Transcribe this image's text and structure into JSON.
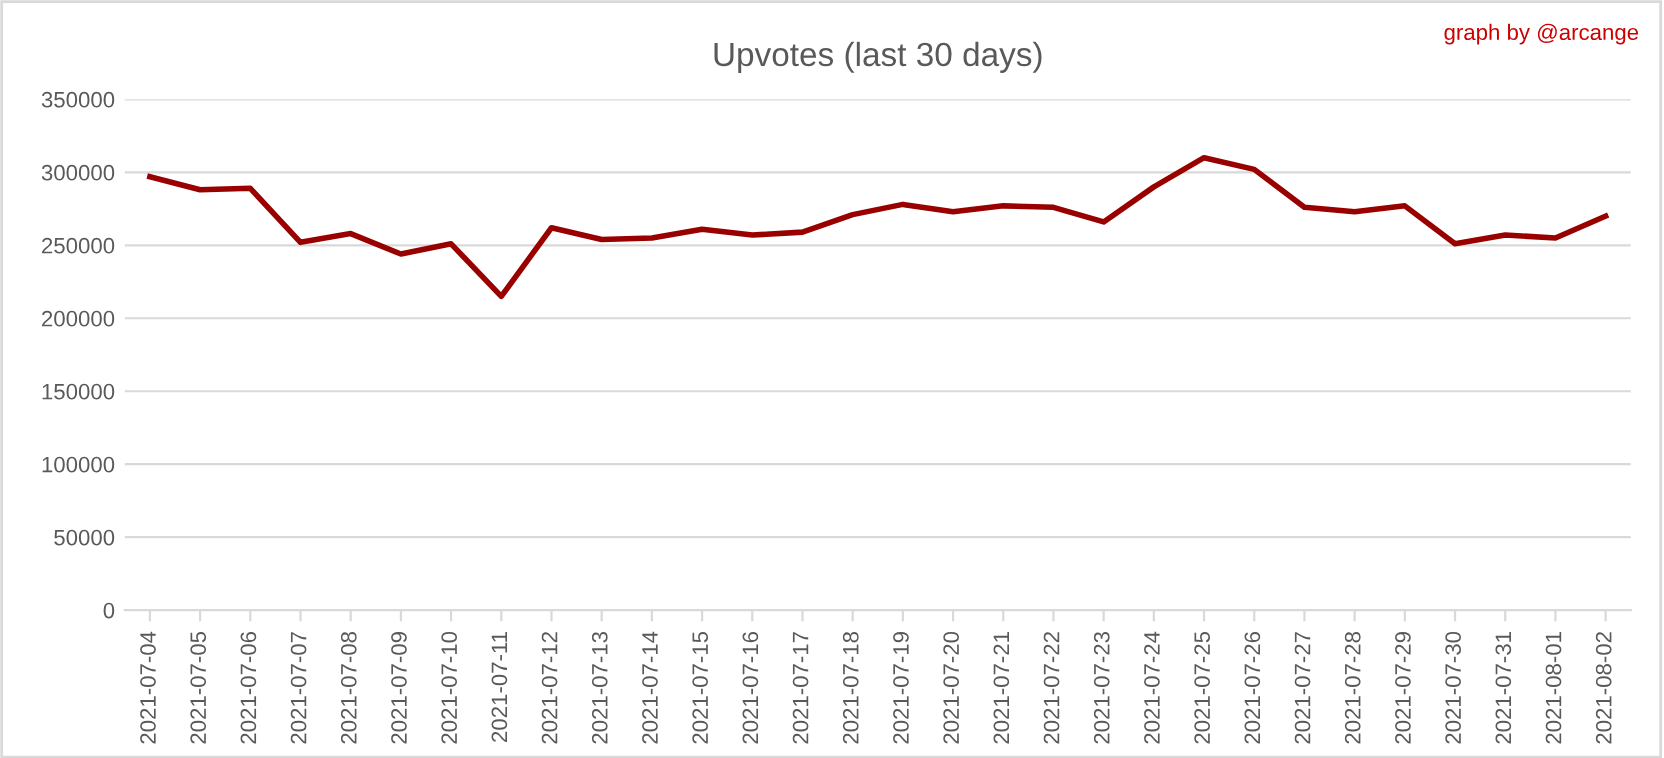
{
  "chart_data": {
    "type": "line",
    "title": "Upvotes (last 30 days)",
    "annotations": [
      "graph by @arcange"
    ],
    "categories": [
      "2021-07-04",
      "2021-07-05",
      "2021-07-06",
      "2021-07-07",
      "2021-07-08",
      "2021-07-09",
      "2021-07-10",
      "2021-07-11",
      "2021-07-12",
      "2021-07-13",
      "2021-07-14",
      "2021-07-15",
      "2021-07-16",
      "2021-07-17",
      "2021-07-18",
      "2021-07-19",
      "2021-07-20",
      "2021-07-21",
      "2021-07-22",
      "2021-07-23",
      "2021-07-24",
      "2021-07-25",
      "2021-07-26",
      "2021-07-27",
      "2021-07-28",
      "2021-07-29",
      "2021-07-30",
      "2021-07-31",
      "2021-08-01",
      "2021-08-02"
    ],
    "series": [
      {
        "color": "#990000",
        "values": [
          297000,
          288000,
          289000,
          252000,
          258000,
          244000,
          251000,
          215000,
          262000,
          254000,
          255000,
          261000,
          257000,
          259000,
          271000,
          278000,
          273000,
          277000,
          276000,
          266000,
          290000,
          310000,
          302000,
          276000,
          273000,
          277000,
          251000,
          257000,
          255000,
          270000
        ]
      }
    ],
    "ylim": [
      0,
      350000
    ],
    "yticks": [
      0,
      50000,
      100000,
      150000,
      200000,
      250000,
      300000,
      350000
    ],
    "grid": "y",
    "marker": "none",
    "line_style": "solid"
  }
}
